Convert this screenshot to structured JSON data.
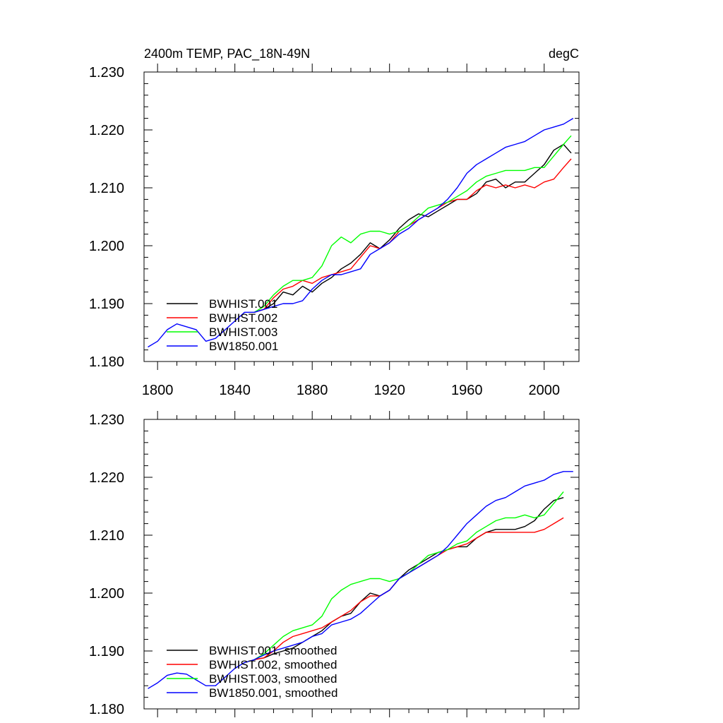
{
  "figure": {
    "title_left": "2400m TEMP, PAC_18N-49N",
    "title_right": "degC"
  },
  "chart_data": [
    {
      "type": "line",
      "xlim": [
        1793,
        2018
      ],
      "ylim": [
        1.18,
        1.23
      ],
      "x_ticks": [
        1800,
        1840,
        1880,
        1920,
        1960,
        2000
      ],
      "x_tick_labels": [
        "1800",
        "1840",
        "1880",
        "1920",
        "1960",
        "2000"
      ],
      "y_ticks": [
        1.18,
        1.19,
        1.2,
        1.21,
        1.22,
        1.23
      ],
      "y_tick_labels": [
        "1.180",
        "1.190",
        "1.200",
        "1.210",
        "1.220",
        "1.230"
      ],
      "legend_placement": "lower-left",
      "series": [
        {
          "name": "BWHIST.001",
          "color": "#000000",
          "x": [
            1850,
            1855,
            1860,
            1865,
            1870,
            1875,
            1880,
            1885,
            1890,
            1895,
            1900,
            1905,
            1910,
            1915,
            1920,
            1925,
            1930,
            1935,
            1940,
            1945,
            1950,
            1955,
            1960,
            1965,
            1970,
            1975,
            1980,
            1985,
            1990,
            1995,
            2000,
            2005,
            2010,
            2014
          ],
          "values": [
            1.1885,
            1.189,
            1.19,
            1.192,
            1.1915,
            1.193,
            1.192,
            1.1935,
            1.1945,
            1.196,
            1.197,
            1.1985,
            1.2005,
            1.1995,
            1.201,
            1.203,
            1.2045,
            1.2055,
            1.205,
            1.206,
            1.207,
            1.208,
            1.208,
            1.209,
            1.211,
            1.2115,
            1.21,
            1.211,
            1.211,
            1.2125,
            1.214,
            1.2165,
            1.2175,
            1.216
          ]
        },
        {
          "name": "BWHIST.002",
          "color": "#ff0000",
          "x": [
            1850,
            1855,
            1860,
            1865,
            1870,
            1875,
            1880,
            1885,
            1890,
            1895,
            1900,
            1905,
            1910,
            1915,
            1920,
            1925,
            1930,
            1935,
            1940,
            1945,
            1950,
            1955,
            1960,
            1965,
            1970,
            1975,
            1980,
            1985,
            1990,
            1995,
            2000,
            2005,
            2010,
            2014
          ],
          "values": [
            1.1885,
            1.189,
            1.191,
            1.1925,
            1.193,
            1.194,
            1.1935,
            1.1945,
            1.195,
            1.1955,
            1.196,
            1.198,
            1.2,
            1.1995,
            1.2005,
            1.2025,
            1.2035,
            1.2045,
            1.2055,
            1.2065,
            1.2075,
            1.208,
            1.208,
            1.2095,
            1.2105,
            1.21,
            1.2105,
            1.21,
            1.2105,
            1.21,
            1.211,
            1.2115,
            1.2135,
            1.215
          ]
        },
        {
          "name": "BWHIST.003",
          "color": "#00ff00",
          "x": [
            1850,
            1855,
            1860,
            1865,
            1870,
            1875,
            1880,
            1885,
            1890,
            1895,
            1900,
            1905,
            1910,
            1915,
            1920,
            1925,
            1930,
            1935,
            1940,
            1945,
            1950,
            1955,
            1960,
            1965,
            1970,
            1975,
            1980,
            1985,
            1990,
            1995,
            2000,
            2005,
            2010,
            2014
          ],
          "values": [
            1.1885,
            1.1895,
            1.1915,
            1.193,
            1.194,
            1.194,
            1.1945,
            1.1965,
            1.2,
            1.2015,
            1.2005,
            1.202,
            1.2025,
            1.2025,
            1.202,
            1.2025,
            1.2035,
            1.205,
            1.2065,
            1.207,
            1.2075,
            1.2085,
            1.2095,
            1.211,
            1.212,
            1.2125,
            1.213,
            1.213,
            1.213,
            1.2135,
            1.2135,
            1.2155,
            1.2175,
            1.219
          ]
        },
        {
          "name": "BW1850.001",
          "color": "#0000ff",
          "x": [
            1795,
            1800,
            1805,
            1810,
            1815,
            1820,
            1825,
            1830,
            1835,
            1840,
            1845,
            1850,
            1855,
            1860,
            1865,
            1870,
            1875,
            1880,
            1885,
            1890,
            1895,
            1900,
            1905,
            1910,
            1915,
            1920,
            1925,
            1930,
            1935,
            1940,
            1945,
            1950,
            1955,
            1960,
            1965,
            1970,
            1975,
            1980,
            1985,
            1990,
            1995,
            2000,
            2005,
            2010,
            2015
          ],
          "values": [
            1.1825,
            1.1835,
            1.1855,
            1.1865,
            1.186,
            1.1855,
            1.1835,
            1.184,
            1.1855,
            1.187,
            1.1885,
            1.1885,
            1.189,
            1.1895,
            1.19,
            1.19,
            1.1905,
            1.1925,
            1.194,
            1.195,
            1.195,
            1.1955,
            1.196,
            1.1985,
            1.1995,
            1.2005,
            1.202,
            1.203,
            1.2045,
            1.2055,
            1.2065,
            1.208,
            1.21,
            1.2125,
            1.214,
            1.215,
            1.216,
            1.217,
            1.2175,
            1.218,
            1.219,
            1.22,
            1.2205,
            1.221,
            1.222
          ]
        }
      ]
    },
    {
      "type": "line",
      "xlim": [
        1793,
        2018
      ],
      "ylim": [
        1.18,
        1.23
      ],
      "x_ticks": [
        1800,
        1840,
        1880,
        1920,
        1960,
        2000
      ],
      "y_ticks": [
        1.18,
        1.19,
        1.2,
        1.21,
        1.22,
        1.23
      ],
      "y_tick_labels": [
        "1.180",
        "1.190",
        "1.200",
        "1.210",
        "1.220",
        "1.230"
      ],
      "legend_placement": "lower-left",
      "series": [
        {
          "name": "BWHIST.001, smoothed",
          "color": "#000000",
          "x": [
            1850,
            1855,
            1860,
            1865,
            1870,
            1875,
            1880,
            1885,
            1890,
            1895,
            1900,
            1905,
            1910,
            1915,
            1920,
            1925,
            1930,
            1935,
            1940,
            1945,
            1950,
            1955,
            1960,
            1965,
            1970,
            1975,
            1980,
            1985,
            1990,
            1995,
            2000,
            2005,
            2010
          ],
          "values": [
            1.1885,
            1.1888,
            1.1895,
            1.19,
            1.1905,
            1.1915,
            1.1925,
            1.1935,
            1.195,
            1.196,
            1.1965,
            1.1985,
            1.2,
            1.1995,
            1.2005,
            1.2025,
            1.204,
            1.205,
            1.206,
            1.207,
            1.2075,
            1.208,
            1.208,
            1.2095,
            1.2105,
            1.211,
            1.211,
            1.211,
            1.2115,
            1.2125,
            1.2145,
            1.216,
            1.2165
          ]
        },
        {
          "name": "BWHIST.002, smoothed",
          "color": "#ff0000",
          "x": [
            1850,
            1855,
            1860,
            1865,
            1870,
            1875,
            1880,
            1885,
            1890,
            1895,
            1900,
            1905,
            1910,
            1915,
            1920,
            1925,
            1930,
            1935,
            1940,
            1945,
            1950,
            1955,
            1960,
            1965,
            1970,
            1975,
            1980,
            1985,
            1990,
            1995,
            2000,
            2005,
            2010
          ],
          "values": [
            1.1885,
            1.1888,
            1.19,
            1.1915,
            1.1925,
            1.193,
            1.1935,
            1.194,
            1.195,
            1.196,
            1.197,
            1.1985,
            1.1995,
            1.1995,
            1.2005,
            1.2025,
            1.2035,
            1.2045,
            1.2055,
            1.2065,
            1.2075,
            1.208,
            1.2085,
            1.2095,
            1.2105,
            1.2105,
            1.2105,
            1.2105,
            1.2105,
            1.2105,
            1.211,
            1.212,
            1.213
          ]
        },
        {
          "name": "BWHIST.003, smoothed",
          "color": "#00ff00",
          "x": [
            1850,
            1855,
            1860,
            1865,
            1870,
            1875,
            1880,
            1885,
            1890,
            1895,
            1900,
            1905,
            1910,
            1915,
            1920,
            1925,
            1930,
            1935,
            1940,
            1945,
            1950,
            1955,
            1960,
            1965,
            1970,
            1975,
            1980,
            1985,
            1990,
            1995,
            2000,
            2005,
            2010
          ],
          "values": [
            1.1885,
            1.1895,
            1.191,
            1.1925,
            1.1935,
            1.194,
            1.1945,
            1.196,
            1.199,
            1.2005,
            1.2015,
            1.202,
            1.2025,
            1.2025,
            1.202,
            1.2025,
            1.2035,
            1.205,
            1.2065,
            1.207,
            1.2075,
            1.2085,
            1.209,
            1.2105,
            1.2115,
            1.2125,
            1.213,
            1.213,
            1.2135,
            1.213,
            1.2135,
            1.2155,
            1.2175
          ]
        },
        {
          "name": "BW1850.001, smoothed",
          "color": "#0000ff",
          "x": [
            1795,
            1800,
            1805,
            1810,
            1815,
            1820,
            1825,
            1830,
            1835,
            1840,
            1845,
            1850,
            1855,
            1860,
            1865,
            1870,
            1875,
            1880,
            1885,
            1890,
            1895,
            1900,
            1905,
            1910,
            1915,
            1920,
            1925,
            1930,
            1935,
            1940,
            1945,
            1950,
            1955,
            1960,
            1965,
            1970,
            1975,
            1980,
            1985,
            1990,
            1995,
            2000,
            2005,
            2010,
            2015
          ],
          "values": [
            1.1835,
            1.1845,
            1.1858,
            1.1862,
            1.186,
            1.185,
            1.184,
            1.184,
            1.1855,
            1.187,
            1.188,
            1.1885,
            1.1893,
            1.19,
            1.1905,
            1.191,
            1.1915,
            1.1925,
            1.193,
            1.1945,
            1.195,
            1.1955,
            1.1965,
            1.198,
            1.1995,
            1.2005,
            1.2025,
            1.2035,
            1.2045,
            1.2055,
            1.2065,
            1.208,
            1.21,
            1.212,
            1.2135,
            1.215,
            1.216,
            1.2165,
            1.2175,
            1.2185,
            1.219,
            1.2195,
            1.2205,
            1.221,
            1.221
          ]
        }
      ]
    }
  ]
}
